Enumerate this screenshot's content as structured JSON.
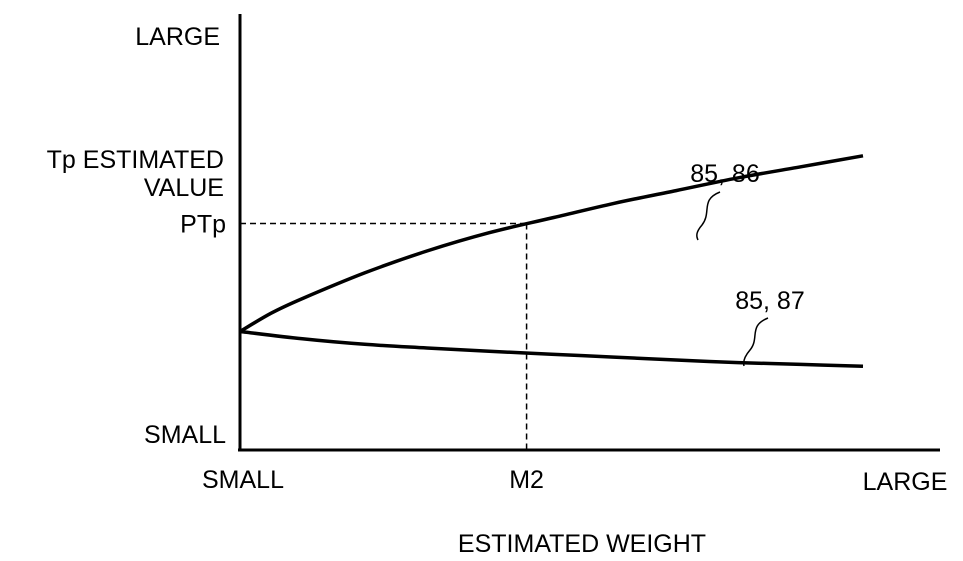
{
  "chart_data": {
    "type": "line",
    "xlabel": "ESTIMATED WEIGHT",
    "ylabel": "Tp ESTIMATED VALUE",
    "ylabel_lines": [
      "Tp ESTIMATED",
      "VALUE"
    ],
    "x_axis": {
      "min_label": "SMALL",
      "max_label": "LARGE",
      "range": [
        0,
        1
      ]
    },
    "y_axis": {
      "min_label": "SMALL",
      "max_label": "LARGE",
      "range": [
        0,
        1
      ]
    },
    "grid": false,
    "series": [
      {
        "name": "85, 86",
        "x": [
          0.0,
          0.05,
          0.1,
          0.2,
          0.3,
          0.4,
          0.5,
          0.6,
          0.7,
          0.8,
          0.9,
          1.0
        ],
        "y": [
          0.25,
          0.3,
          0.34,
          0.41,
          0.47,
          0.52,
          0.56,
          0.6,
          0.635,
          0.67,
          0.7,
          0.73
        ]
      },
      {
        "name": "85, 87",
        "x": [
          0.0,
          0.1,
          0.2,
          0.3,
          0.4,
          0.5,
          0.6,
          0.7,
          0.8,
          0.9,
          1.0
        ],
        "y": [
          0.25,
          0.23,
          0.215,
          0.205,
          0.196,
          0.188,
          0.18,
          0.172,
          0.165,
          0.16,
          0.155
        ]
      }
    ],
    "reference": {
      "x_label": "M2",
      "y_label": "PTp",
      "x": 0.46,
      "y": 0.545
    }
  }
}
